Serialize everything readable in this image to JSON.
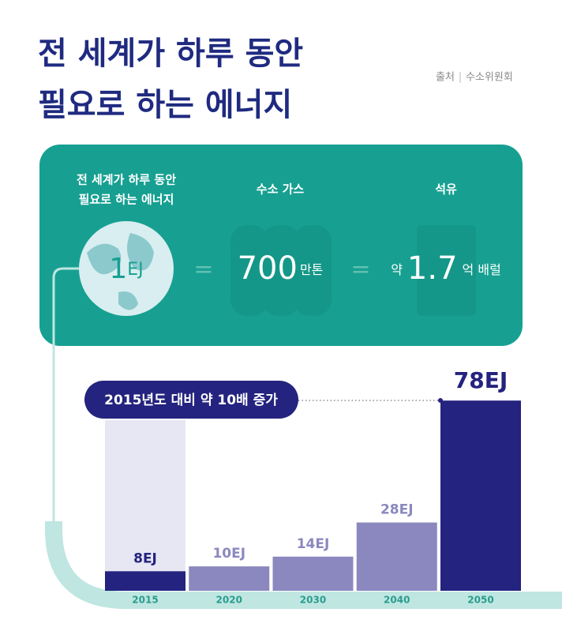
{
  "header": {
    "title": [
      "전 세계가 하루 동안",
      "필요로 하는 에너지"
    ],
    "source_label": "출처",
    "source": "수소위원회"
  },
  "card": {
    "columns": [
      {
        "label": [
          "전 세계가 하루 동안",
          "필요로 하는 에너지"
        ],
        "value": 1,
        "unit": "EJ"
      },
      {
        "label": [
          "수소 가스"
        ],
        "value": 700,
        "unit": "만톤"
      },
      {
        "label": [
          "석유"
        ],
        "prefix": "약",
        "value": 1.7,
        "unit": "억 배럴"
      }
    ]
  },
  "chart_data": {
    "type": "bar",
    "annotation": "2015년도 대비 약 10배 증가",
    "categories": [
      "2015",
      "2020",
      "2030",
      "2040",
      "2050"
    ],
    "values": [
      8,
      10,
      14,
      28,
      78
    ],
    "value_labels": [
      "8EJ",
      "10EJ",
      "14EJ",
      "28EJ",
      "78EJ"
    ],
    "colors": [
      "#24237f",
      "#8b88bf",
      "#8b88bf",
      "#8b88bf",
      "#24237f"
    ],
    "ylim": [
      0,
      80
    ]
  }
}
